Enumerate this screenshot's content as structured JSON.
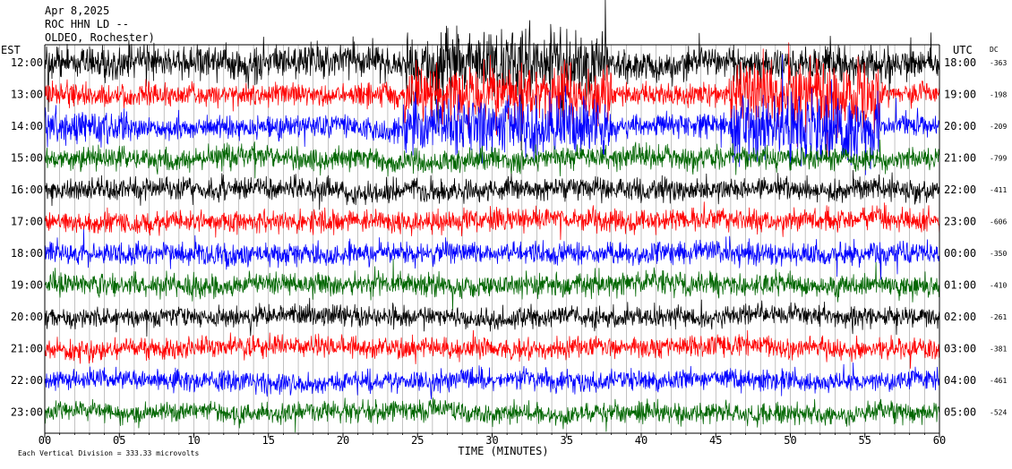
{
  "header": {
    "date": "Apr 8,2025",
    "station": "ROC HHN LD --",
    "location": "OLDEO, Rochester)"
  },
  "chart_data": {
    "type": "line",
    "title": "Apr 8,2025",
    "xlabel": "TIME (MINUTES)",
    "xlim": [
      0,
      60
    ],
    "x_ticks": [
      "00",
      "05",
      "10",
      "15",
      "20",
      "25",
      "30",
      "35",
      "40",
      "45",
      "50",
      "55",
      "60"
    ],
    "left_axis_label": "EST",
    "right_axis_label": "UTC",
    "dc_label": "DC",
    "grid": "vertical lines every minute",
    "footer_note": "Each Vertical Division =  333.33 microvolts",
    "trace_colors": [
      "#000000",
      "#ff0000",
      "#0000ff",
      "#006600"
    ],
    "rows": [
      {
        "est": "12:00",
        "utc": "18:00",
        "dc": "-363",
        "color": "#000000"
      },
      {
        "est": "13:00",
        "utc": "19:00",
        "dc": "-198",
        "color": "#ff0000"
      },
      {
        "est": "14:00",
        "utc": "20:00",
        "dc": "-209",
        "color": "#0000ff"
      },
      {
        "est": "15:00",
        "utc": "21:00",
        "dc": "-799",
        "color": "#006600"
      },
      {
        "est": "16:00",
        "utc": "22:00",
        "dc": "-411",
        "color": "#000000"
      },
      {
        "est": "17:00",
        "utc": "23:00",
        "dc": "-606",
        "color": "#ff0000"
      },
      {
        "est": "18:00",
        "utc": "00:00",
        "dc": "-350",
        "color": "#0000ff"
      },
      {
        "est": "19:00",
        "utc": "01:00",
        "dc": "-410",
        "color": "#006600"
      },
      {
        "est": "20:00",
        "utc": "02:00",
        "dc": "-261",
        "color": "#000000"
      },
      {
        "est": "21:00",
        "utc": "03:00",
        "dc": "-381",
        "color": "#ff0000"
      },
      {
        "est": "22:00",
        "utc": "04:00",
        "dc": "-461",
        "color": "#0000ff"
      },
      {
        "est": "23:00",
        "utc": "05:00",
        "dc": "-524",
        "color": "#006600"
      }
    ]
  }
}
